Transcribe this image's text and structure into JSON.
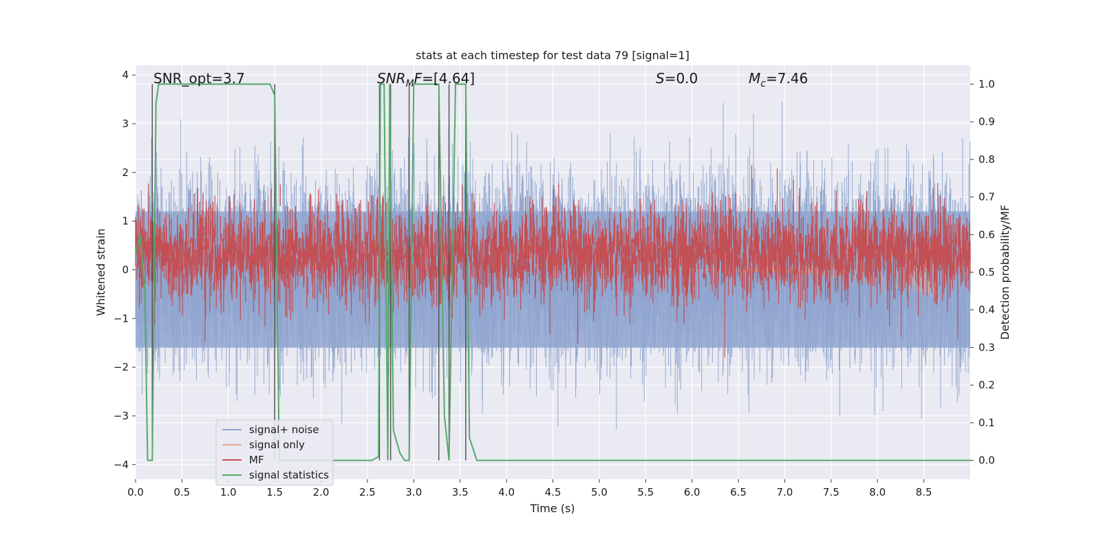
{
  "chart_data": {
    "type": "line",
    "title": "stats at each timestep for test data 79 [signal=1]",
    "xlabel": "Time (s)",
    "ylabel": "Whitened strain",
    "ylabel_right": "Detection probability/MF",
    "xlim": [
      0.0,
      9.0
    ],
    "ylim": [
      -4.3,
      4.2
    ],
    "ylim_right": [
      -0.05,
      1.05
    ],
    "x_ticks": [
      "0.0",
      "0.5",
      "1.0",
      "1.5",
      "2.0",
      "2.5",
      "3.0",
      "3.5",
      "4.0",
      "4.5",
      "5.0",
      "5.5",
      "6.0",
      "6.5",
      "7.0",
      "7.5",
      "8.0",
      "8.5"
    ],
    "y_ticks": [
      "4",
      "3",
      "2",
      "1",
      "0",
      "−1",
      "−2",
      "−3",
      "−4"
    ],
    "y_ticks_right": [
      "1.0",
      "0.9",
      "0.8",
      "0.7",
      "0.6",
      "0.5",
      "0.4",
      "0.3",
      "0.2",
      "0.1",
      "0.0"
    ],
    "grid": true,
    "legend_position": "lower-left",
    "annotations": {
      "snr_opt": {
        "label": "SNR_opt",
        "value": "=3.7"
      },
      "snr_mf": {
        "label": "SNR",
        "subscript": "M",
        "label2": "F",
        "value": "=[4.64]"
      },
      "s": {
        "label": "S",
        "value": "=0.0"
      },
      "mc": {
        "label": "M",
        "subscript": "c",
        "value": "=7.46"
      }
    },
    "series": [
      {
        "name": "signal+ noise",
        "color": "#8fa5cf",
        "axis": "left",
        "envelope_std": 0.85,
        "x_range": [
          0.0,
          9.0
        ]
      },
      {
        "name": "signal only",
        "color": "#e8a58d",
        "axis": "left",
        "chirp_start": 5.5,
        "chirp_end": 8.65,
        "peak_amplitude": 0.6
      },
      {
        "name": "MF",
        "color": "#c44e52",
        "axis": "right",
        "baseline": 0.55,
        "spread": 0.06,
        "x_range": [
          0.0,
          9.0
        ]
      },
      {
        "name": "signal statistics",
        "color": "#55a868",
        "axis": "right",
        "x": [
          0.0,
          0.05,
          0.1,
          0.13,
          0.18,
          0.22,
          0.25,
          1.45,
          1.5,
          1.55,
          1.58,
          2.55,
          2.62,
          2.64,
          2.68,
          2.72,
          2.74,
          2.78,
          2.85,
          2.9,
          2.95,
          3.0,
          3.27,
          3.33,
          3.38,
          3.45,
          3.5,
          3.56,
          3.6,
          3.68,
          9.0
        ],
        "y": [
          0.55,
          0.6,
          0.45,
          0.0,
          0.0,
          0.95,
          1.0,
          1.0,
          0.97,
          0.0,
          0.0,
          0.0,
          0.01,
          1.0,
          1.0,
          0.0,
          1.0,
          0.08,
          0.02,
          0.0,
          0.0,
          1.0,
          1.0,
          0.12,
          0.0,
          1.0,
          1.0,
          1.0,
          0.06,
          0.0,
          0.0
        ]
      }
    ],
    "vertical_lines": [
      0.18,
      1.5,
      2.63,
      2.75,
      2.95,
      3.27,
      3.38,
      3.56
    ]
  }
}
